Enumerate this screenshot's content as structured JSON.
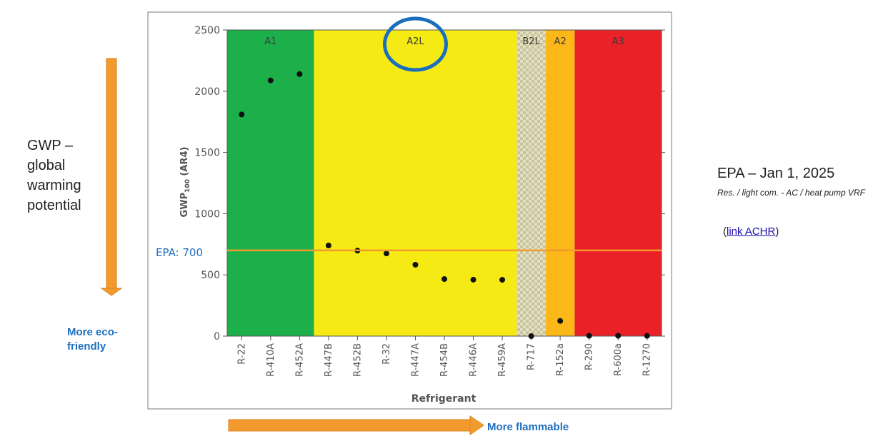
{
  "annotations": {
    "gwp_note": "GWP –\nglobal\nwarming\npotential",
    "eco_note": "More eco-\nfriendly",
    "flammable_note": "More flammable",
    "epa_title": "EPA – Jan 1, 2025",
    "epa_subtitle": "Res. / light com. - AC / heat pump VRF",
    "link_open": "(",
    "link_text": "link ACHR",
    "link_close": ")"
  },
  "colors": {
    "A1": "#1db04a",
    "A2L": "#f5ea14",
    "B2L": "#d6d1a8",
    "A2": "#fbb818",
    "A3": "#ea2127",
    "threshold_line": "#f29a2e",
    "arrow": "#f29a2e",
    "circle": "#1a6ebd",
    "points": "#111111"
  },
  "chart_data": {
    "type": "scatter",
    "xlabel": "Refrigerant",
    "ylabel": "GWP100 (AR4)",
    "ylim": [
      0,
      2500
    ],
    "yticks": [
      0,
      500,
      1000,
      1500,
      2000,
      2500
    ],
    "categories": [
      "R-22",
      "R-410A",
      "R-452A",
      "R-447B",
      "R-452B",
      "R-32",
      "R-447A",
      "R-454B",
      "R-446A",
      "R-459A",
      "R-717",
      "R-152a",
      "R-290",
      "R-600a",
      "R-1270"
    ],
    "values": [
      1810,
      2088,
      2140,
      740,
      698,
      675,
      583,
      466,
      461,
      460,
      0,
      124,
      3,
      3,
      2
    ],
    "safety_classes": [
      {
        "name": "A1",
        "from": 0,
        "to": 2
      },
      {
        "name": "A2L",
        "from": 3,
        "to": 9
      },
      {
        "name": "B2L",
        "from": 10,
        "to": 10
      },
      {
        "name": "A2",
        "from": 11,
        "to": 11
      },
      {
        "name": "A3",
        "from": 12,
        "to": 14
      }
    ],
    "highlighted_class": "A2L",
    "threshold": {
      "value": 700,
      "label": "EPA: 700"
    }
  }
}
